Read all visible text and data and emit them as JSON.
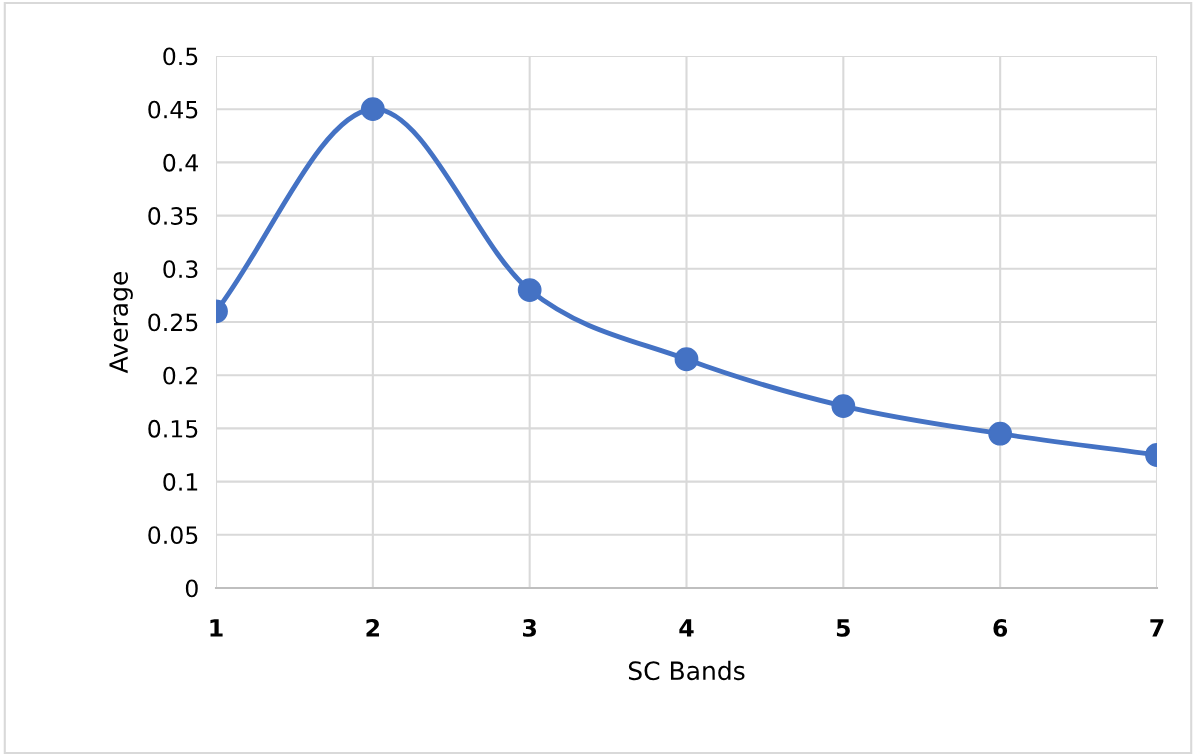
{
  "chart_data": {
    "type": "line",
    "xlabel": "SC Bands",
    "ylabel": "Average",
    "x": [
      1,
      2,
      3,
      4,
      5,
      6,
      7
    ],
    "series": [
      {
        "color": "#4472c4",
        "values": [
          0.26,
          0.45,
          0.28,
          0.215,
          0.171,
          0.145,
          0.125
        ]
      }
    ],
    "xlim": [
      1,
      7
    ],
    "xticks": [
      1,
      2,
      3,
      4,
      5,
      6,
      7
    ],
    "ylim": [
      0,
      0.5
    ],
    "yticks": [
      0,
      0.05,
      0.1,
      0.15,
      0.2,
      0.25,
      0.3,
      0.35,
      0.4,
      0.45,
      0.5
    ],
    "grid": true,
    "marker": "circle",
    "line_style": "solid"
  }
}
